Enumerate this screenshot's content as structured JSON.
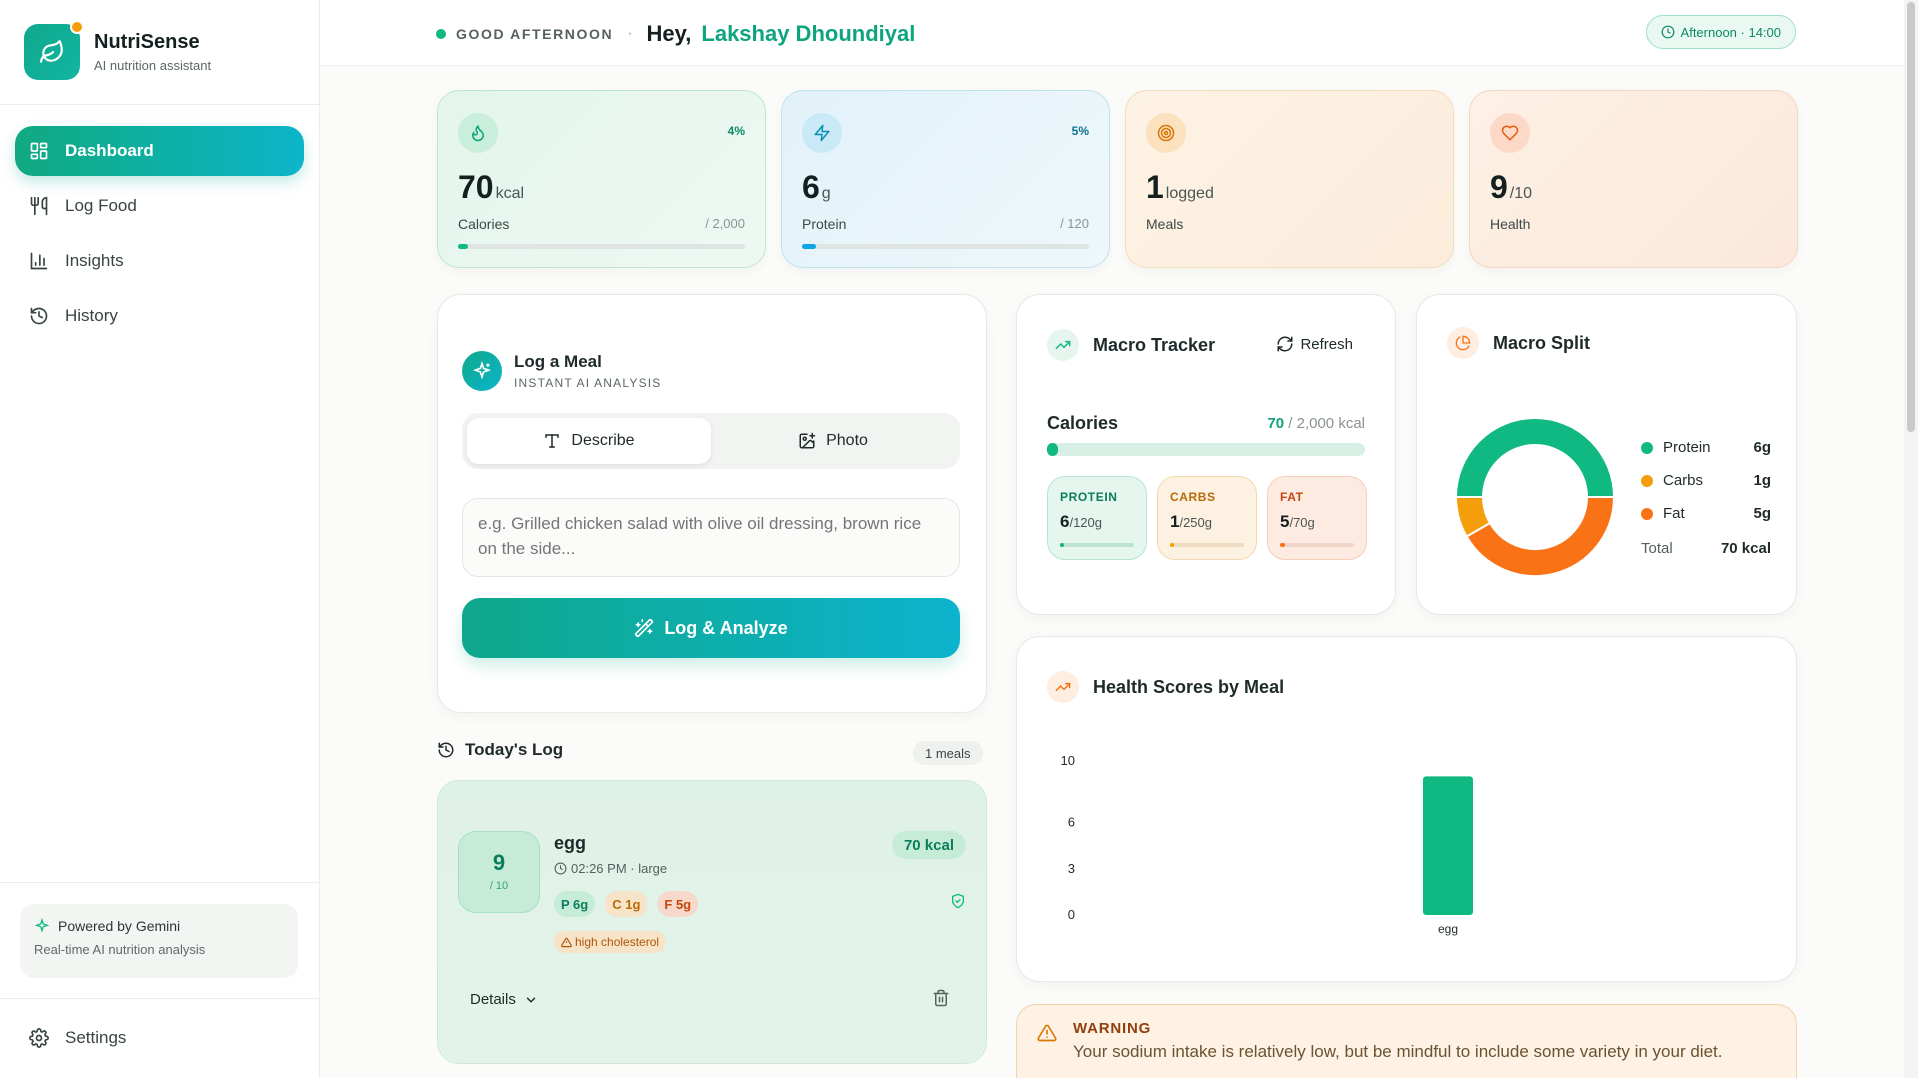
{
  "brand": {
    "name": "NutriSense",
    "subtitle": "AI nutrition assistant"
  },
  "nav": [
    {
      "label": "Dashboard",
      "icon": "grid-icon",
      "active": true
    },
    {
      "label": "Log Food",
      "icon": "utensils-icon",
      "active": false
    },
    {
      "label": "Insights",
      "icon": "bar-chart-icon",
      "active": false
    },
    {
      "label": "History",
      "icon": "history-icon",
      "active": false
    }
  ],
  "powered": {
    "title": "Powered by Gemini",
    "subtitle": "Real-time AI nutrition analysis"
  },
  "settings_label": "Settings",
  "header": {
    "greeting": "GOOD AFTERNOON",
    "hey": "Hey,",
    "user_name": "Lakshay Dhoundiyal",
    "time_pill": "Afternoon · 14:00"
  },
  "stats": {
    "calories": {
      "value": "70",
      "unit": "kcal",
      "label": "Calories",
      "goal": "/ 2,000",
      "pct": "4%",
      "progress": 0.035
    },
    "protein": {
      "value": "6",
      "unit": "g",
      "label": "Protein",
      "goal": "/ 120",
      "pct": "5%",
      "progress": 0.05
    },
    "meals": {
      "value": "1",
      "unit": "logged",
      "label": "Meals"
    },
    "health": {
      "value": "9",
      "unit": "/10",
      "label": "Health"
    }
  },
  "log_meal": {
    "title": "Log a Meal",
    "subtitle": "INSTANT AI ANALYSIS",
    "tab_describe": "Describe",
    "tab_photo": "Photo",
    "placeholder": "e.g. Grilled chicken salad with olive oil dressing, brown rice on the side...",
    "button": "Log & Analyze"
  },
  "today_log": {
    "title": "Today's Log",
    "count": "1 meals",
    "meals": [
      {
        "score": "9",
        "score_max": "/ 10",
        "name": "egg",
        "time": "02:26 PM · large",
        "kcal": "70 kcal",
        "protein": "P 6g",
        "carbs": "C 1g",
        "fat": "F 5g",
        "alert": "high cholesterol",
        "details": "Details"
      }
    ]
  },
  "macro_tracker": {
    "title": "Macro Tracker",
    "refresh": "Refresh",
    "calories_label": "Calories",
    "calories_value": "70",
    "calories_goal": "/ 2,000 kcal",
    "calories_progress": 0.035,
    "macros": [
      {
        "label": "PROTEIN",
        "value": "6",
        "goal": "/120g",
        "progress": 0.05,
        "color": "#10b981"
      },
      {
        "label": "CARBS",
        "value": "1",
        "goal": "/250g",
        "progress": 0.004,
        "color": "#f59e0b"
      },
      {
        "label": "FAT",
        "value": "5",
        "goal": "/70g",
        "progress": 0.07,
        "color": "#f97316"
      }
    ]
  },
  "macro_split": {
    "title": "Macro Split",
    "items": [
      {
        "name": "Protein",
        "value": "6g",
        "grams": 6,
        "color": "#10b981"
      },
      {
        "name": "Carbs",
        "value": "1g",
        "grams": 1,
        "color": "#f59e0b"
      },
      {
        "name": "Fat",
        "value": "5g",
        "grams": 5,
        "color": "#f97316"
      }
    ],
    "total_label": "Total",
    "total_value": "70 kcal"
  },
  "health_scores": {
    "title": "Health Scores by Meal"
  },
  "chart_data": {
    "type": "bar",
    "categories": [
      "egg"
    ],
    "values": [
      9
    ],
    "yticks": [
      0,
      3,
      6,
      10
    ],
    "ylim": [
      0,
      10
    ],
    "color": "#10b981",
    "grid": false
  },
  "warning": {
    "title": "WARNING",
    "text": "Your sodium intake is relatively low, but be mindful to include some variety in your diet."
  }
}
